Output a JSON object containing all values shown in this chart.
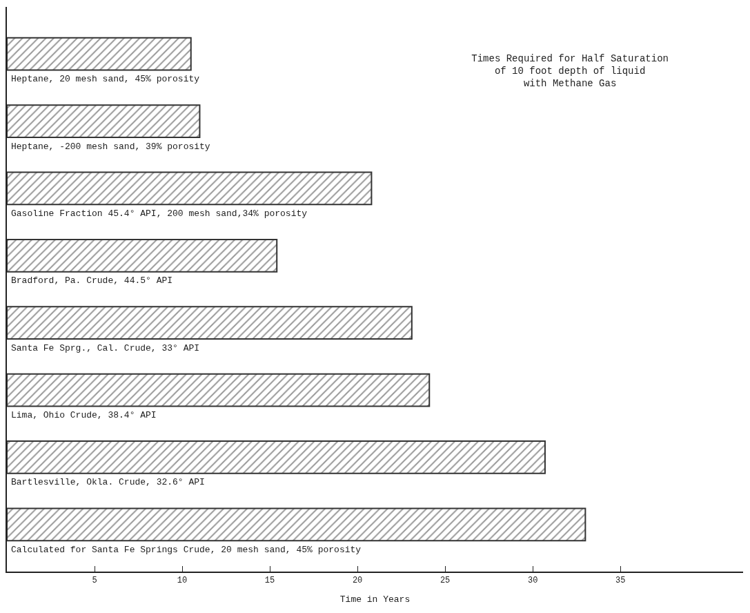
{
  "chart_data": {
    "type": "bar",
    "orientation": "horizontal",
    "title": "Times Required for Half Saturation\nof 10 foot depth of liquid\nwith Methane Gas",
    "xlabel": "Time in Years",
    "categories": [
      "Heptane, 20 mesh sand, 45% porosity",
      "Heptane, -200 mesh sand, 39% porosity",
      "Gasoline Fraction 45.4° API, 200 mesh sand,34% porosity",
      "Bradford, Pa. Crude, 44.5° API",
      "Santa Fe Sprg., Cal. Crude, 33° API",
      "Lima, Ohio Crude, 38.4° API",
      "Bartlesville, Okla. Crude, 32.6° API",
      "Calculated for Santa Fe Springs Crude, 20 mesh sand, 45% porosity"
    ],
    "values": [
      10.5,
      11.0,
      20.8,
      15.4,
      23.1,
      24.1,
      30.7,
      33.0
    ],
    "color": "#333333",
    "xlim": [
      0,
      42
    ],
    "xticks": [
      5,
      10,
      15,
      20,
      25,
      30,
      35
    ],
    "tick_labels": "x"
  }
}
